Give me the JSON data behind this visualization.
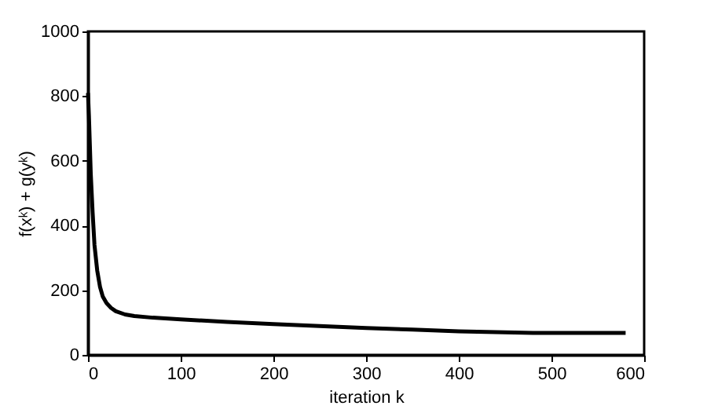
{
  "chart_data": {
    "type": "line",
    "xlabel": "iteration  k",
    "ylabel": "f(xᵏ) + g(yᵏ)",
    "x": [
      0,
      1,
      2,
      3,
      5,
      7,
      10,
      13,
      16,
      20,
      25,
      30,
      40,
      50,
      70,
      100,
      150,
      200,
      250,
      300,
      350,
      400,
      450,
      480,
      520,
      580
    ],
    "series": [
      {
        "color": "#000000",
        "values": [
          810,
          740,
          650,
          560,
          440,
          340,
          260,
          210,
          180,
          160,
          145,
          135,
          125,
          120,
          115,
          110,
          102,
          95,
          89,
          83,
          78,
          73,
          70,
          68,
          68,
          68
        ]
      }
    ],
    "xlim": [
      0,
      600
    ],
    "ylim": [
      0,
      1000
    ],
    "xticks": [
      0,
      100,
      200,
      300,
      400,
      500,
      600
    ],
    "yticks": [
      0,
      200,
      400,
      600,
      800,
      1000
    ],
    "grid": false,
    "legend": false,
    "marker": "none",
    "line_style": "solid"
  }
}
